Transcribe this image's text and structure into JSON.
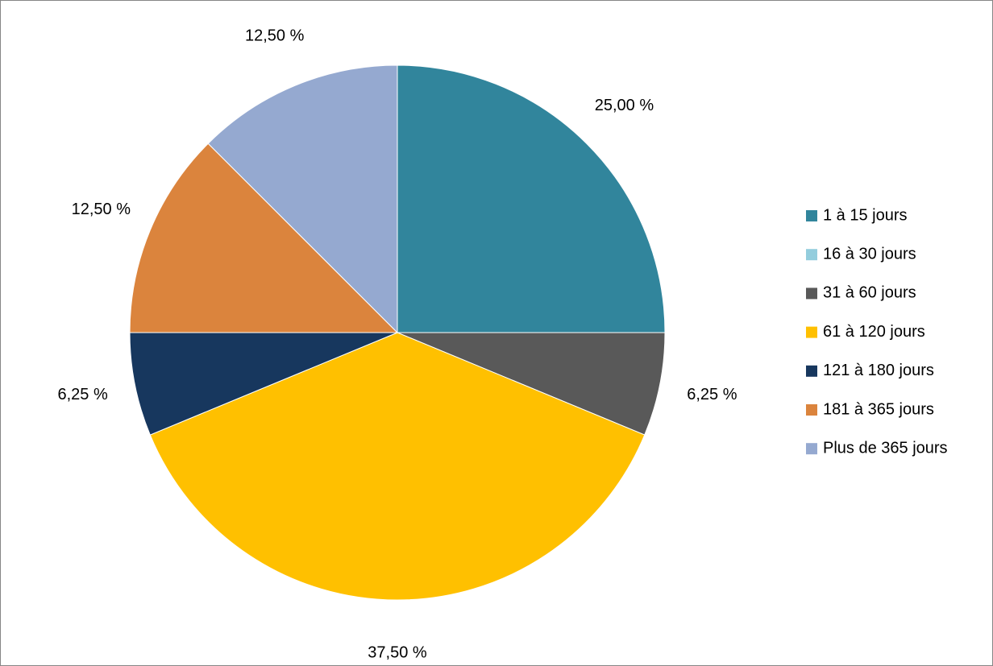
{
  "chart_data": {
    "type": "pie",
    "series": [
      {
        "name": "1 à 15 jours",
        "color": "#31859c",
        "values": [
          25
        ],
        "value_labels": [
          "25,00 %"
        ]
      },
      {
        "name": "16 à 30 jours",
        "color": "#93cddd",
        "values": [
          0
        ],
        "value_labels": [
          null
        ]
      },
      {
        "name": "31 à 60 jours",
        "color": "#595959",
        "values": [
          6.25
        ],
        "value_labels": [
          "6,25 %"
        ]
      },
      {
        "name": "61 à 120 jours",
        "color": "#ffc000",
        "values": [
          37.5
        ],
        "value_labels": [
          "37,50 %"
        ]
      },
      {
        "name": "121 à 180 jours",
        "color": "#17375e",
        "values": [
          6.25
        ],
        "value_labels": [
          "6,25 %"
        ]
      },
      {
        "name": "181 à 365 jours",
        "color": "#db843d",
        "values": [
          12.5
        ],
        "value_labels": [
          "12,50 %"
        ]
      },
      {
        "name": "Plus de 365 jours",
        "color": "#95a9d0",
        "values": [
          12.5
        ],
        "value_labels": [
          "12,50 %"
        ]
      }
    ],
    "legend": "right"
  }
}
